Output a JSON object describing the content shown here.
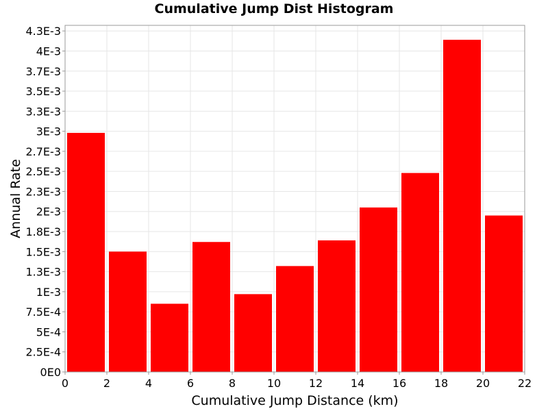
{
  "chart_data": {
    "type": "bar",
    "title": "Cumulative Jump Dist Histogram",
    "xlabel": "Cumulative Jump Distance (km)",
    "ylabel": "Annual Rate",
    "bin_width": 2,
    "bin_starts": [
      0,
      2,
      4,
      6,
      8,
      10,
      12,
      14,
      16,
      18,
      20
    ],
    "values": [
      0.00298,
      0.0015,
      0.00085,
      0.00162,
      0.00097,
      0.00132,
      0.00164,
      0.00205,
      0.00248,
      0.00414,
      0.00195
    ],
    "xlim": [
      0,
      22
    ],
    "ylim": [
      0,
      0.00432
    ],
    "x_ticks": [
      0,
      2,
      4,
      6,
      8,
      10,
      12,
      14,
      16,
      18,
      20,
      22
    ],
    "x_tick_labels": [
      "0",
      "2",
      "4",
      "6",
      "8",
      "10",
      "12",
      "14",
      "16",
      "18",
      "20",
      "22"
    ],
    "y_ticks": [
      0,
      0.00025,
      0.0005,
      0.00075,
      0.001,
      0.00125,
      0.0015,
      0.00175,
      0.002,
      0.00225,
      0.0025,
      0.00275,
      0.003,
      0.00325,
      0.0035,
      0.00375,
      0.004,
      0.00425
    ],
    "y_tick_labels": [
      "0E0",
      "2.5E-4",
      "5E-4",
      "7.5E-4",
      "1E-3",
      "1.3E-3",
      "1.5E-3",
      "1.8E-3",
      "2E-3",
      "2.3E-3",
      "2.5E-3",
      "2.7E-3",
      "3E-3",
      "3.3E-3",
      "3.5E-3",
      "3.7E-3",
      "4E-3",
      "4.3E-3"
    ],
    "grid": true,
    "legend": "none",
    "bar_color": "#ff0000",
    "grid_color": "#e6e6e6"
  }
}
